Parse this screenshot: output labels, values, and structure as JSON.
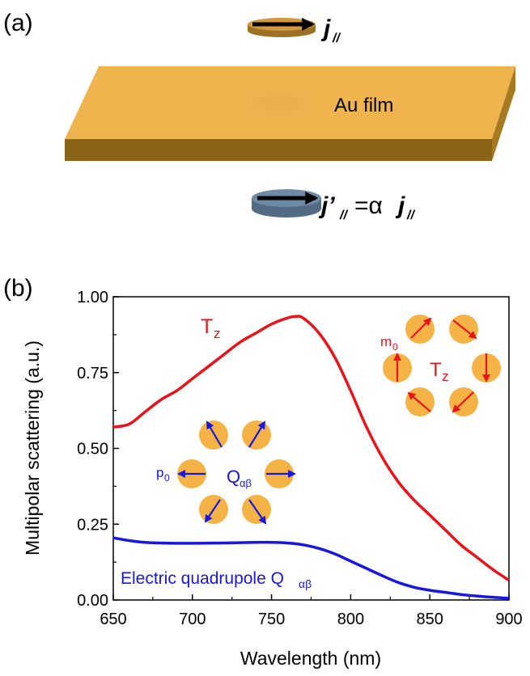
{
  "panel_a": {
    "label": "(a)",
    "film_label": "Au film",
    "top_current_label": "j",
    "top_current_sub": "//",
    "bottom_current_label": "j’",
    "bottom_current_sub": "//",
    "bottom_current_eq": "=α",
    "bottom_current_rhs": "j",
    "bottom_current_rhs_sub": "//",
    "colors": {
      "gold_top": "#f0b44f",
      "gold_side": "#b8862a",
      "gold_front": "#8a6418",
      "mirror": "#6f8aa5"
    }
  },
  "panel_b": {
    "label": "(b)",
    "tz_label": "T",
    "tz_sub": "z",
    "q_label": "Electric quadrupole Q",
    "q_sub": "αβ",
    "inset_tz": {
      "m_label": "m",
      "m_sub": "0",
      "center_label": "T",
      "center_sub": "z"
    },
    "inset_q": {
      "p_label": "p",
      "p_sub": "0",
      "center_label": "Q",
      "center_sub": "αβ"
    },
    "colors": {
      "tz": "#e8141b",
      "q": "#1717e0",
      "dot": "#f5b245"
    }
  },
  "chart_data": {
    "type": "line",
    "xlabel": "Wavelength (nm)",
    "ylabel": "Multipolar scattering (a.u.)",
    "xlim": [
      650,
      900
    ],
    "ylim": [
      0,
      1
    ],
    "xticks": [
      "650",
      "700",
      "750",
      "800",
      "850",
      "900"
    ],
    "yticks": [
      "0.00",
      "0.25",
      "0.50",
      "0.75",
      "1.00"
    ],
    "series": [
      {
        "name": "T",
        "color": "#e8141b",
        "x": [
          650,
          660,
          670,
          680,
          690,
          700,
          710,
          720,
          730,
          740,
          750,
          760,
          765,
          770,
          780,
          790,
          800,
          810,
          820,
          830,
          840,
          850,
          860,
          870,
          880,
          890,
          900
        ],
        "y": [
          0.57,
          0.58,
          0.62,
          0.66,
          0.69,
          0.73,
          0.77,
          0.81,
          0.85,
          0.88,
          0.91,
          0.93,
          0.935,
          0.93,
          0.88,
          0.8,
          0.69,
          0.57,
          0.47,
          0.39,
          0.33,
          0.28,
          0.23,
          0.18,
          0.14,
          0.1,
          0.065
        ]
      },
      {
        "name": "Electric quadrupole Q",
        "color": "#1717e0",
        "x": [
          650,
          660,
          670,
          680,
          690,
          700,
          720,
          740,
          750,
          760,
          770,
          780,
          790,
          800,
          810,
          820,
          830,
          840,
          850,
          860,
          870,
          880,
          890,
          900
        ],
        "y": [
          0.205,
          0.196,
          0.19,
          0.188,
          0.187,
          0.187,
          0.188,
          0.19,
          0.19,
          0.188,
          0.182,
          0.17,
          0.152,
          0.128,
          0.104,
          0.08,
          0.058,
          0.042,
          0.032,
          0.025,
          0.018,
          0.013,
          0.009,
          0.006
        ]
      }
    ]
  }
}
